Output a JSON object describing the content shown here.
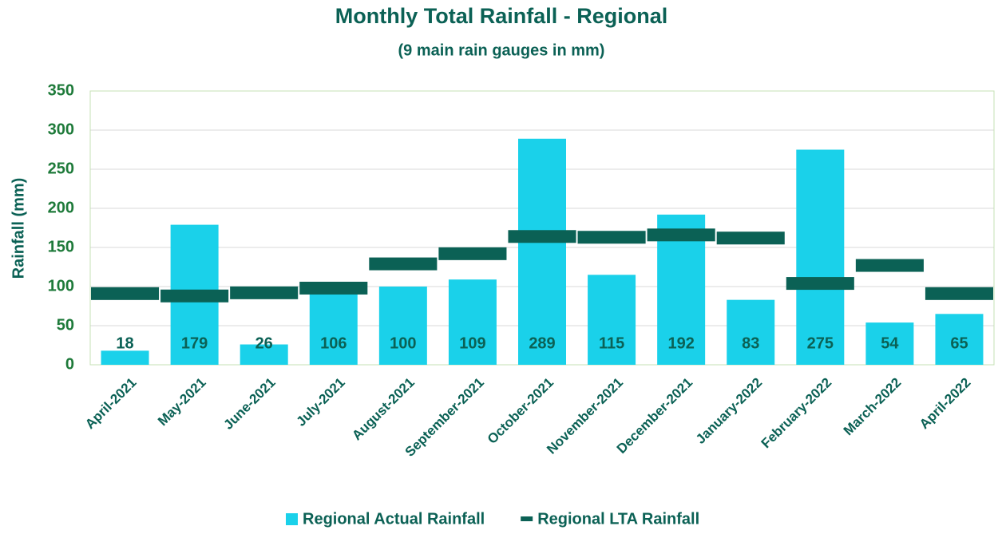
{
  "chart_data": {
    "type": "bar",
    "title": "Monthly Total Rainfall - Regional",
    "subtitle": "(9 main rain gauges in mm)",
    "y_label": "Rainfall (mm)",
    "categories": [
      "April-2021",
      "May-2021",
      "June-2021",
      "July-2021",
      "August-2021",
      "September-2021",
      "October-2021",
      "November-2021",
      "December-2021",
      "January-2022",
      "February-2022",
      "March-2022",
      "April-2022"
    ],
    "series": [
      {
        "name": "Regional Actual Rainfall",
        "color": "#1ad1ea",
        "mark": "bar",
        "values": [
          18,
          179,
          26,
          106,
          100,
          109,
          289,
          115,
          192,
          83,
          275,
          54,
          65
        ]
      },
      {
        "name": "Regional LTA Rainfall",
        "color": "#0b6155",
        "mark": "dash",
        "values": [
          91,
          88,
          92,
          98,
          129,
          142,
          164,
          163,
          166,
          162,
          104,
          127,
          91
        ]
      }
    ],
    "ylim": [
      0,
      350
    ],
    "yticks": [
      0,
      50,
      100,
      150,
      200,
      250,
      300,
      350
    ],
    "grid": true,
    "legend": "bottom"
  }
}
